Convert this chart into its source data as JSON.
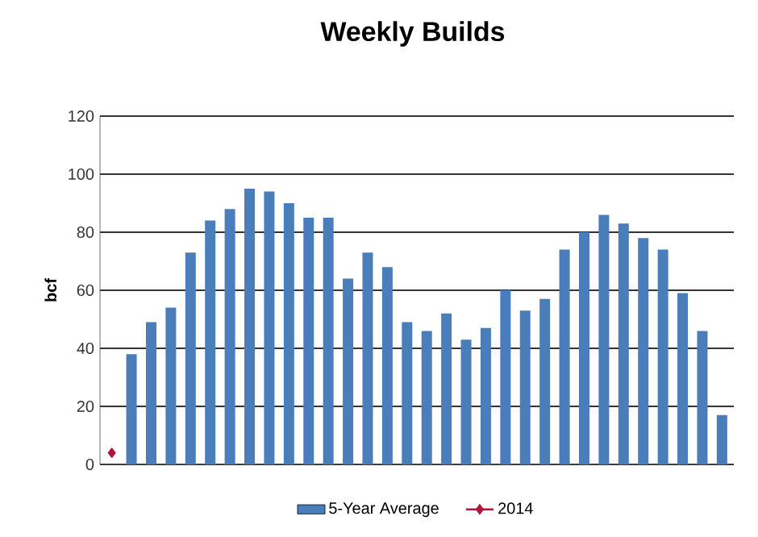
{
  "chart_data": {
    "type": "bar",
    "title": "Weekly Builds",
    "ylabel": "bcf",
    "categories": [
      null,
      null,
      null,
      null,
      null,
      null,
      null,
      null,
      null,
      null,
      null,
      null,
      null,
      null,
      null,
      null,
      null,
      null,
      null,
      null,
      null,
      null,
      null,
      null,
      null,
      null,
      null,
      null,
      null,
      null,
      null,
      null
    ],
    "series": [
      {
        "name": "5-Year Average",
        "color": "#4a7ebb",
        "values": [
          null,
          38,
          49,
          54,
          73,
          84,
          88,
          95,
          94,
          90,
          85,
          85,
          64,
          73,
          68,
          49,
          46,
          52,
          43,
          47,
          60,
          53,
          57,
          74,
          80,
          86,
          83,
          78,
          74,
          59,
          46,
          17
        ]
      },
      {
        "name": "2014",
        "type": "line",
        "color": "#b0163a",
        "marker": "diamond",
        "values": [
          4,
          null,
          null,
          null,
          null,
          null,
          null,
          null,
          null,
          null,
          null,
          null,
          null,
          null,
          null,
          null,
          null,
          null,
          null,
          null,
          null,
          null,
          null,
          null,
          null,
          null,
          null,
          null,
          null,
          null,
          null,
          null
        ]
      }
    ],
    "ylim": [
      0,
      120
    ],
    "yticks": [
      0,
      20,
      40,
      60,
      80,
      100,
      120
    ],
    "grid": "y",
    "legend": "bottom"
  }
}
